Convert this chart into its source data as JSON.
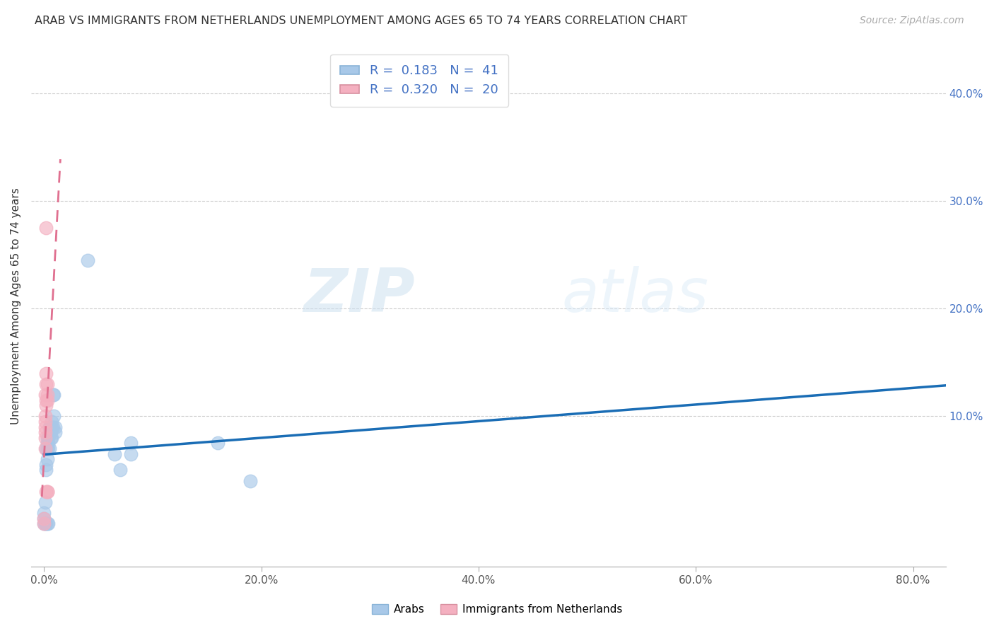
{
  "title": "ARAB VS IMMIGRANTS FROM NETHERLANDS UNEMPLOYMENT AMONG AGES 65 TO 74 YEARS CORRELATION CHART",
  "source": "Source: ZipAtlas.com",
  "ylabel": "Unemployment Among Ages 65 to 74 years",
  "x_tick_labels": [
    "0.0%",
    "20.0%",
    "40.0%",
    "60.0%",
    "80.0%"
  ],
  "x_tick_values": [
    0.0,
    0.2,
    0.4,
    0.6,
    0.8
  ],
  "y_tick_labels": [
    "10.0%",
    "20.0%",
    "30.0%",
    "40.0%"
  ],
  "y_tick_values": [
    0.1,
    0.2,
    0.3,
    0.4
  ],
  "xlim": [
    -0.012,
    0.83
  ],
  "ylim": [
    -0.04,
    0.445
  ],
  "legend_labels": [
    "Arabs",
    "Immigrants from Netherlands"
  ],
  "arab_R": "0.183",
  "arab_N": "41",
  "netherlands_R": "0.320",
  "netherlands_N": "20",
  "watermark_zip": "ZIP",
  "watermark_atlas": "atlas",
  "arab_color": "#a8c8e8",
  "netherlands_color": "#f4b0c0",
  "arab_line_color": "#1a6db5",
  "netherlands_line_color": "#e07090",
  "legend_rect_arab": "#a8c8e8",
  "legend_rect_netherlands": "#f4b0c0",
  "arab_points": [
    [
      0.0,
      0.0
    ],
    [
      0.0,
      0.01
    ],
    [
      0.0,
      0.005
    ],
    [
      0.001,
      0.0
    ],
    [
      0.001,
      0.02
    ],
    [
      0.001,
      0.0
    ],
    [
      0.002,
      0.0
    ],
    [
      0.002,
      0.05
    ],
    [
      0.002,
      0.055
    ],
    [
      0.002,
      0.07
    ],
    [
      0.003,
      0.06
    ],
    [
      0.003,
      0.0
    ],
    [
      0.003,
      0.07
    ],
    [
      0.003,
      0.075
    ],
    [
      0.003,
      0.08
    ],
    [
      0.004,
      0.0
    ],
    [
      0.004,
      0.07
    ],
    [
      0.004,
      0.08
    ],
    [
      0.004,
      0.075
    ],
    [
      0.005,
      0.09
    ],
    [
      0.005,
      0.085
    ],
    [
      0.005,
      0.09
    ],
    [
      0.005,
      0.07
    ],
    [
      0.006,
      0.08
    ],
    [
      0.006,
      0.085
    ],
    [
      0.007,
      0.09
    ],
    [
      0.007,
      0.095
    ],
    [
      0.007,
      0.08
    ],
    [
      0.008,
      0.12
    ],
    [
      0.008,
      0.09
    ],
    [
      0.009,
      0.1
    ],
    [
      0.009,
      0.12
    ],
    [
      0.01,
      0.085
    ],
    [
      0.01,
      0.09
    ],
    [
      0.04,
      0.245
    ],
    [
      0.065,
      0.065
    ],
    [
      0.07,
      0.05
    ],
    [
      0.08,
      0.065
    ],
    [
      0.08,
      0.075
    ],
    [
      0.16,
      0.075
    ],
    [
      0.19,
      0.04
    ]
  ],
  "netherlands_points": [
    [
      0.0,
      0.0
    ],
    [
      0.0,
      0.005
    ],
    [
      0.001,
      0.07
    ],
    [
      0.001,
      0.08
    ],
    [
      0.001,
      0.085
    ],
    [
      0.001,
      0.09
    ],
    [
      0.001,
      0.095
    ],
    [
      0.001,
      0.1
    ],
    [
      0.001,
      0.12
    ],
    [
      0.002,
      0.11
    ],
    [
      0.002,
      0.13
    ],
    [
      0.002,
      0.14
    ],
    [
      0.002,
      0.275
    ],
    [
      0.002,
      0.03
    ],
    [
      0.002,
      0.115
    ],
    [
      0.003,
      0.12
    ],
    [
      0.003,
      0.115
    ],
    [
      0.003,
      0.13
    ],
    [
      0.003,
      0.03
    ],
    [
      0.003,
      0.03
    ]
  ],
  "netherlands_line_x": [
    -0.002,
    0.012
  ],
  "netherlands_line_y_start": 0.04,
  "netherlands_line_slope": 50.0
}
